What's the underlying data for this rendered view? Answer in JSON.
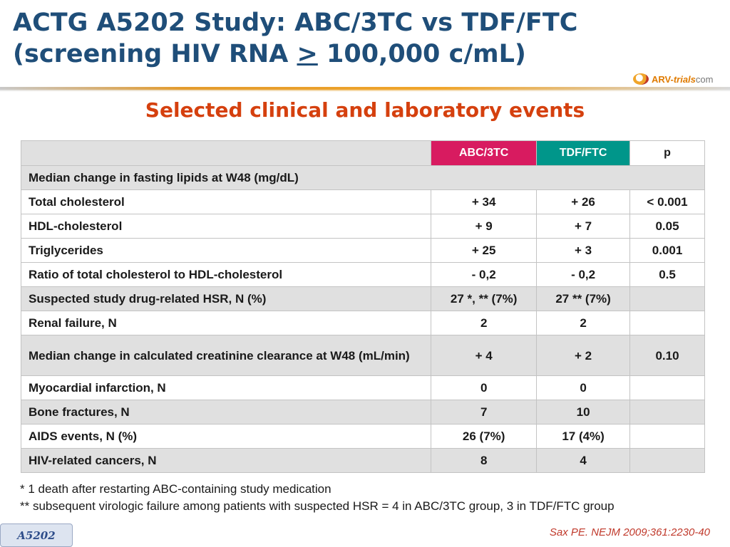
{
  "header": {
    "title_line1": "ACTG A5202 Study: ABC/3TC vs TDF/FTC",
    "title_line2_pre": "(screening HIV RNA ",
    "title_line2_ge": ">",
    "title_line2_post": " 100,000 c/mL)",
    "logo_part1": "ARV-",
    "logo_part2": "trials",
    "logo_part3": "com",
    "subtitle": "Selected clinical and laboratory events"
  },
  "table": {
    "columns": [
      "",
      "ABC/3TC",
      "TDF/FTC",
      "p"
    ],
    "column_colors": {
      "abc": "#d81b60",
      "tdf": "#00968a"
    },
    "rows": [
      {
        "label": "Median change in fasting lipids at W48 (mg/dL)",
        "abc": "",
        "tdf": "",
        "p": ""
      },
      {
        "label": "Total cholesterol",
        "abc": "+ 34",
        "tdf": "+ 26",
        "p": "< 0.001"
      },
      {
        "label": "HDL-cholesterol",
        "abc": "+ 9",
        "tdf": "+ 7",
        "p": "0.05"
      },
      {
        "label": "Triglycerides",
        "abc": "+ 25",
        "tdf": "+ 3",
        "p": "0.001"
      },
      {
        "label": "Ratio of total cholesterol to HDL-cholesterol",
        "abc": "- 0,2",
        "tdf": "- 0,2",
        "p": "0.5"
      },
      {
        "label": "Suspected study drug-related HSR, N (%)",
        "abc": "27 *, ** (7%)",
        "tdf": "27 ** (7%)",
        "p": ""
      },
      {
        "label": "Renal failure, N",
        "abc": "2",
        "tdf": "2",
        "p": ""
      },
      {
        "label": "Median change in calculated creatinine clearance at W48 (mL/min)",
        "abc": "+ 4",
        "tdf": "+ 2",
        "p": "0.10"
      },
      {
        "label": "Myocardial infarction, N",
        "abc": "0",
        "tdf": "0",
        "p": ""
      },
      {
        "label": "Bone fractures, N",
        "abc": "7",
        "tdf": "10",
        "p": ""
      },
      {
        "label": "AIDS events, N (%)",
        "abc": "26 (7%)",
        "tdf": "17 (4%)",
        "p": ""
      },
      {
        "label": "HIV-related cancers, N",
        "abc": "8",
        "tdf": "4",
        "p": ""
      }
    ]
  },
  "footnotes": [
    "* 1 death after restarting ABC-containing study medication",
    "** subsequent virologic failure among patients with suspected HSR = 4 in ABC/3TC group, 3 in TDF/FTC group"
  ],
  "footer": {
    "badge": "A5202",
    "reference": "Sax PE. NEJM 2009;361:2230-40"
  }
}
